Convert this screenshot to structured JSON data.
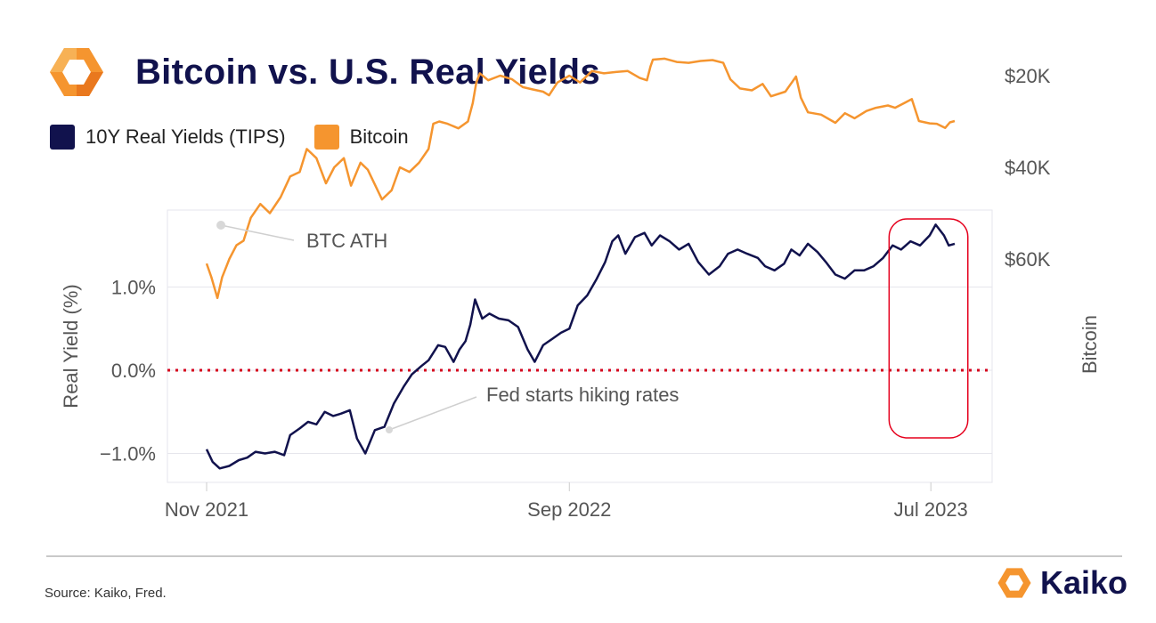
{
  "header": {
    "title": "Bitcoin vs. U.S. Real Yields"
  },
  "brand": {
    "name": "Kaiko"
  },
  "footer": {
    "source": "Source: Kaiko, Fred."
  },
  "colors": {
    "yield": "#11124d",
    "bitcoin": "#f5952f",
    "zero_line": "#d6001c",
    "highlight": "#e5001d",
    "grid": "#e6e6ec",
    "logo": "#f5952f"
  },
  "chart_data": {
    "type": "line",
    "x_ticks": [
      "Nov 2021",
      "Sep 2022",
      "Jul 2023"
    ],
    "y_left": {
      "label": "Real Yield (%)",
      "ticks": [
        "1.0%",
        "0.0%",
        "−1.0%"
      ],
      "range": [
        -1.3,
        1.9
      ]
    },
    "y_right": {
      "label": "Bitcoin",
      "ticks": [
        "$60K",
        "$40K",
        "$20K"
      ],
      "range": [
        13000,
        73000
      ]
    },
    "reference_line": {
      "axis": "left",
      "value": 0.0,
      "style": "dotted"
    },
    "annotations": [
      {
        "text": "BTC ATH",
        "x": "2021-11-10"
      },
      {
        "text": "Fed starts hiking rates",
        "x": "2022-03-16"
      }
    ],
    "highlight_period": {
      "start": "2023-05-27",
      "end": "2023-08-01"
    },
    "series": [
      {
        "name": "10Y Real Yields (TIPS)",
        "axis": "left",
        "points": [
          [
            "2021-11-01",
            -0.95
          ],
          [
            "2021-11-06",
            -1.1
          ],
          [
            "2021-11-12",
            -1.18
          ],
          [
            "2021-11-20",
            -1.15
          ],
          [
            "2021-11-28",
            -1.08
          ],
          [
            "2021-12-05",
            -1.05
          ],
          [
            "2021-12-12",
            -0.98
          ],
          [
            "2021-12-20",
            -1.0
          ],
          [
            "2021-12-28",
            -0.98
          ],
          [
            "2022-01-05",
            -1.02
          ],
          [
            "2022-01-10",
            -0.78
          ],
          [
            "2022-01-18",
            -0.7
          ],
          [
            "2022-01-25",
            -0.62
          ],
          [
            "2022-02-01",
            -0.65
          ],
          [
            "2022-02-08",
            -0.5
          ],
          [
            "2022-02-15",
            -0.55
          ],
          [
            "2022-02-22",
            -0.52
          ],
          [
            "2022-03-01",
            -0.48
          ],
          [
            "2022-03-07",
            -0.82
          ],
          [
            "2022-03-14",
            -1.0
          ],
          [
            "2022-03-22",
            -0.72
          ],
          [
            "2022-03-30",
            -0.68
          ],
          [
            "2022-04-07",
            -0.4
          ],
          [
            "2022-04-15",
            -0.2
          ],
          [
            "2022-04-22",
            -0.05
          ],
          [
            "2022-04-30",
            0.05
          ],
          [
            "2022-05-06",
            0.12
          ],
          [
            "2022-05-14",
            0.3
          ],
          [
            "2022-05-20",
            0.28
          ],
          [
            "2022-05-27",
            0.1
          ],
          [
            "2022-06-01",
            0.25
          ],
          [
            "2022-06-06",
            0.35
          ],
          [
            "2022-06-10",
            0.55
          ],
          [
            "2022-06-14",
            0.85
          ],
          [
            "2022-06-20",
            0.62
          ],
          [
            "2022-06-26",
            0.68
          ],
          [
            "2022-07-04",
            0.62
          ],
          [
            "2022-07-12",
            0.6
          ],
          [
            "2022-07-20",
            0.52
          ],
          [
            "2022-07-28",
            0.25
          ],
          [
            "2022-08-03",
            0.1
          ],
          [
            "2022-08-10",
            0.3
          ],
          [
            "2022-08-18",
            0.38
          ],
          [
            "2022-08-25",
            0.45
          ],
          [
            "2022-09-01",
            0.5
          ],
          [
            "2022-09-08",
            0.78
          ],
          [
            "2022-09-16",
            0.9
          ],
          [
            "2022-09-24",
            1.1
          ],
          [
            "2022-10-01",
            1.3
          ],
          [
            "2022-10-07",
            1.55
          ],
          [
            "2022-10-12",
            1.62
          ],
          [
            "2022-10-18",
            1.4
          ],
          [
            "2022-10-26",
            1.6
          ],
          [
            "2022-11-03",
            1.65
          ],
          [
            "2022-11-09",
            1.5
          ],
          [
            "2022-11-16",
            1.62
          ],
          [
            "2022-11-24",
            1.55
          ],
          [
            "2022-12-02",
            1.45
          ],
          [
            "2022-12-10",
            1.52
          ],
          [
            "2022-12-18",
            1.3
          ],
          [
            "2022-12-27",
            1.15
          ],
          [
            "2023-01-05",
            1.25
          ],
          [
            "2023-01-12",
            1.4
          ],
          [
            "2023-01-20",
            1.45
          ],
          [
            "2023-01-28",
            1.4
          ],
          [
            "2023-02-06",
            1.35
          ],
          [
            "2023-02-12",
            1.25
          ],
          [
            "2023-02-20",
            1.2
          ],
          [
            "2023-02-28",
            1.28
          ],
          [
            "2023-03-06",
            1.45
          ],
          [
            "2023-03-13",
            1.38
          ],
          [
            "2023-03-20",
            1.52
          ],
          [
            "2023-03-28",
            1.42
          ],
          [
            "2023-04-04",
            1.3
          ],
          [
            "2023-04-12",
            1.15
          ],
          [
            "2023-04-20",
            1.1
          ],
          [
            "2023-04-28",
            1.2
          ],
          [
            "2023-05-06",
            1.2
          ],
          [
            "2023-05-14",
            1.25
          ],
          [
            "2023-05-22",
            1.35
          ],
          [
            "2023-05-30",
            1.5
          ],
          [
            "2023-06-06",
            1.45
          ],
          [
            "2023-06-14",
            1.55
          ],
          [
            "2023-06-22",
            1.5
          ],
          [
            "2023-06-30",
            1.62
          ],
          [
            "2023-07-05",
            1.75
          ],
          [
            "2023-07-12",
            1.62
          ],
          [
            "2023-07-16",
            1.5
          ],
          [
            "2023-07-21",
            1.52
          ]
        ]
      },
      {
        "name": "Bitcoin",
        "axis": "right",
        "points": [
          [
            "2021-11-01",
            61000
          ],
          [
            "2021-11-05",
            64000
          ],
          [
            "2021-11-10",
            68500
          ],
          [
            "2021-11-14",
            64000
          ],
          [
            "2021-11-20",
            60000
          ],
          [
            "2021-11-26",
            57000
          ],
          [
            "2021-12-02",
            56000
          ],
          [
            "2021-12-08",
            51000
          ],
          [
            "2021-12-16",
            48000
          ],
          [
            "2021-12-24",
            50000
          ],
          [
            "2022-01-02",
            46500
          ],
          [
            "2022-01-10",
            42000
          ],
          [
            "2022-01-18",
            41000
          ],
          [
            "2022-01-24",
            36000
          ],
          [
            "2022-02-01",
            38000
          ],
          [
            "2022-02-09",
            43500
          ],
          [
            "2022-02-16",
            40000
          ],
          [
            "2022-02-24",
            38000
          ],
          [
            "2022-03-02",
            44000
          ],
          [
            "2022-03-10",
            39000
          ],
          [
            "2022-03-16",
            40500
          ],
          [
            "2022-03-28",
            47000
          ],
          [
            "2022-04-05",
            45000
          ],
          [
            "2022-04-12",
            40000
          ],
          [
            "2022-04-20",
            41000
          ],
          [
            "2022-04-28",
            39000
          ],
          [
            "2022-05-06",
            36000
          ],
          [
            "2022-05-10",
            30500
          ],
          [
            "2022-05-15",
            30000
          ],
          [
            "2022-05-22",
            30500
          ],
          [
            "2022-05-31",
            31500
          ],
          [
            "2022-06-08",
            30000
          ],
          [
            "2022-06-12",
            26000
          ],
          [
            "2022-06-15",
            21500
          ],
          [
            "2022-06-18",
            19500
          ],
          [
            "2022-06-25",
            21000
          ],
          [
            "2022-07-05",
            20000
          ],
          [
            "2022-07-15",
            20800
          ],
          [
            "2022-07-24",
            22500
          ],
          [
            "2022-08-01",
            23000
          ],
          [
            "2022-08-10",
            23500
          ],
          [
            "2022-08-15",
            24300
          ],
          [
            "2022-08-22",
            21500
          ],
          [
            "2022-09-01",
            20000
          ],
          [
            "2022-09-10",
            21500
          ],
          [
            "2022-09-20",
            19000
          ],
          [
            "2022-09-30",
            19500
          ],
          [
            "2022-10-10",
            19200
          ],
          [
            "2022-10-20",
            19000
          ],
          [
            "2022-10-30",
            20500
          ],
          [
            "2022-11-05",
            21000
          ],
          [
            "2022-11-08",
            18000
          ],
          [
            "2022-11-10",
            16500
          ],
          [
            "2022-11-20",
            16300
          ],
          [
            "2022-11-30",
            17000
          ],
          [
            "2022-12-10",
            17200
          ],
          [
            "2022-12-20",
            16800
          ],
          [
            "2022-12-30",
            16600
          ],
          [
            "2023-01-08",
            17200
          ],
          [
            "2023-01-14",
            20800
          ],
          [
            "2023-01-22",
            22800
          ],
          [
            "2023-02-01",
            23200
          ],
          [
            "2023-02-10",
            21800
          ],
          [
            "2023-02-17",
            24500
          ],
          [
            "2023-03-01",
            23500
          ],
          [
            "2023-03-10",
            20200
          ],
          [
            "2023-03-14",
            24800
          ],
          [
            "2023-03-20",
            28000
          ],
          [
            "2023-03-31",
            28500
          ],
          [
            "2023-04-12",
            30300
          ],
          [
            "2023-04-20",
            28200
          ],
          [
            "2023-04-28",
            29300
          ],
          [
            "2023-05-08",
            27700
          ],
          [
            "2023-05-16",
            27000
          ],
          [
            "2023-05-26",
            26500
          ],
          [
            "2023-06-01",
            27000
          ],
          [
            "2023-06-10",
            25800
          ],
          [
            "2023-06-15",
            25100
          ],
          [
            "2023-06-21",
            29900
          ],
          [
            "2023-06-30",
            30400
          ],
          [
            "2023-07-06",
            30500
          ],
          [
            "2023-07-13",
            31400
          ],
          [
            "2023-07-17",
            30200
          ],
          [
            "2023-07-21",
            29900
          ]
        ]
      }
    ]
  }
}
